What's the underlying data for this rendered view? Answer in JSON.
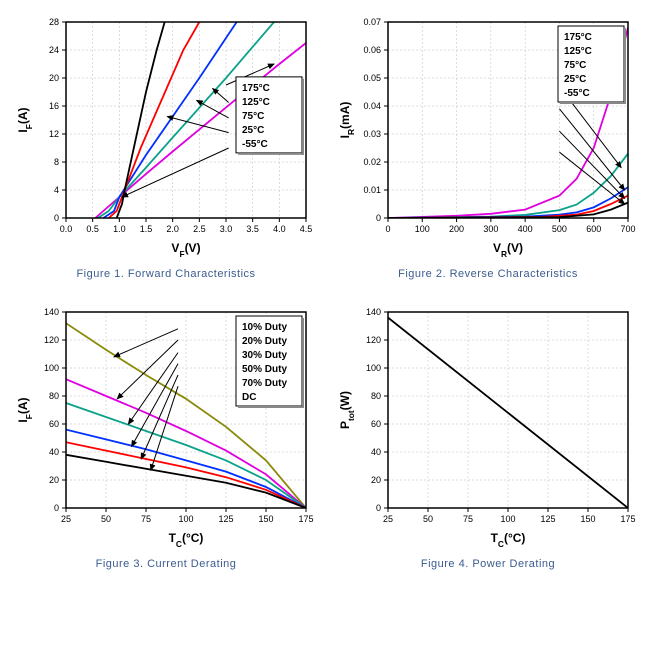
{
  "figures": [
    {
      "caption": "Figure 1. Forward Characteristics",
      "xlabel": "V_F(V)",
      "ylabel": "I_F(A)",
      "xlim": [
        0,
        4.5
      ],
      "xtick_step": 0.5,
      "ylim": [
        0,
        28
      ],
      "ytick_step": 4,
      "background_color": "#ffffff",
      "grid_color": "#bbbbbb",
      "legend_items": [
        "175°C",
        "125°C",
        "75°C",
        "25°C",
        "-55°C"
      ],
      "legend_pos": "right-mid",
      "series": [
        {
          "name": "175°C",
          "color": "#e000e0",
          "points": [
            [
              0.55,
              0
            ],
            [
              0.7,
              1
            ],
            [
              1.0,
              3
            ],
            [
              1.5,
              6.3
            ],
            [
              2.0,
              9.5
            ],
            [
              3.0,
              15.8
            ],
            [
              4.0,
              22
            ],
            [
              4.5,
              25
            ]
          ]
        },
        {
          "name": "125°C",
          "color": "#0aa28a",
          "points": [
            [
              0.6,
              0
            ],
            [
              0.8,
              1
            ],
            [
              1.0,
              3
            ],
            [
              1.5,
              7.2
            ],
            [
              2.0,
              11.5
            ],
            [
              3.0,
              20
            ],
            [
              3.9,
              28
            ]
          ]
        },
        {
          "name": "75°C",
          "color": "#0030ff",
          "points": [
            [
              0.7,
              0
            ],
            [
              0.9,
              1
            ],
            [
              1.0,
              3
            ],
            [
              1.5,
              9
            ],
            [
              2.0,
              14.5
            ],
            [
              2.5,
              20
            ],
            [
              3.2,
              28
            ]
          ]
        },
        {
          "name": "25°C",
          "color": "#ff0000",
          "points": [
            [
              0.8,
              0
            ],
            [
              0.95,
              1
            ],
            [
              1.05,
              3
            ],
            [
              1.4,
              10
            ],
            [
              1.8,
              17
            ],
            [
              2.2,
              24
            ],
            [
              2.5,
              28
            ]
          ]
        },
        {
          "name": "-55°C",
          "color": "#000000",
          "points": [
            [
              0.95,
              0
            ],
            [
              1.05,
              2
            ],
            [
              1.1,
              4
            ],
            [
              1.3,
              11
            ],
            [
              1.5,
              18
            ],
            [
              1.7,
              24
            ],
            [
              1.85,
              28
            ]
          ]
        }
      ],
      "arrows": [
        {
          "from": [
            3.0,
            19
          ],
          "to": [
            3.9,
            22
          ]
        },
        {
          "from": [
            3.05,
            16.5
          ],
          "to": [
            2.75,
            18.5
          ]
        },
        {
          "from": [
            3.05,
            14.3
          ],
          "to": [
            2.45,
            16.8
          ]
        },
        {
          "from": [
            3.05,
            12.2
          ],
          "to": [
            1.9,
            14.5
          ]
        },
        {
          "from": [
            3.05,
            10
          ],
          "to": [
            1.05,
            3
          ]
        }
      ]
    },
    {
      "caption": "Figure 2. Reverse Characteristics",
      "xlabel": "V_R(V)",
      "ylabel": "I_R(mA)",
      "xlim": [
        0,
        700
      ],
      "xtick_step": 100,
      "ylim": [
        0,
        0.07
      ],
      "ytick_step": 0.01,
      "background_color": "#ffffff",
      "grid_color": "#bbbbbb",
      "legend_items": [
        "175°C",
        "125°C",
        "75°C",
        "25°C",
        "-55°C"
      ],
      "legend_pos": "right-upper",
      "series": [
        {
          "name": "175°C",
          "color": "#e000e0",
          "points": [
            [
              0,
              0
            ],
            [
              200,
              0.0008
            ],
            [
              300,
              0.0015
            ],
            [
              400,
              0.003
            ],
            [
              500,
              0.008
            ],
            [
              550,
              0.014
            ],
            [
              600,
              0.025
            ],
            [
              650,
              0.044
            ],
            [
              700,
              0.068
            ]
          ]
        },
        {
          "name": "125°C",
          "color": "#0aa28a",
          "points": [
            [
              0,
              0
            ],
            [
              300,
              0.0005
            ],
            [
              400,
              0.0011
            ],
            [
              500,
              0.0028
            ],
            [
              550,
              0.0048
            ],
            [
              600,
              0.009
            ],
            [
              650,
              0.015
            ],
            [
              700,
              0.023
            ]
          ]
        },
        {
          "name": "75°C",
          "color": "#0030ff",
          "points": [
            [
              0,
              0
            ],
            [
              400,
              0.0005
            ],
            [
              500,
              0.0012
            ],
            [
              550,
              0.002
            ],
            [
              600,
              0.0038
            ],
            [
              650,
              0.007
            ],
            [
              700,
              0.011
            ]
          ]
        },
        {
          "name": "25°C",
          "color": "#ff0000",
          "points": [
            [
              0,
              0
            ],
            [
              450,
              0.0004
            ],
            [
              550,
              0.0012
            ],
            [
              600,
              0.0025
            ],
            [
              650,
              0.005
            ],
            [
              700,
              0.008
            ]
          ]
        },
        {
          "name": "-55°C",
          "color": "#000000",
          "points": [
            [
              0,
              0
            ],
            [
              500,
              0.0003
            ],
            [
              600,
              0.0013
            ],
            [
              650,
              0.003
            ],
            [
              700,
              0.0055
            ]
          ]
        }
      ],
      "arrows": [
        {
          "from": [
            500,
            0.0545
          ],
          "to": [
            655,
            0.046
          ]
        },
        {
          "from": [
            500,
            0.047
          ],
          "to": [
            680,
            0.018
          ]
        },
        {
          "from": [
            500,
            0.039
          ],
          "to": [
            690,
            0.01
          ]
        },
        {
          "from": [
            500,
            0.031
          ],
          "to": [
            690,
            0.007
          ]
        },
        {
          "from": [
            500,
            0.0235
          ],
          "to": [
            690,
            0.005
          ]
        }
      ]
    },
    {
      "caption": "Figure 3. Current Derating",
      "xlabel": "T_C(°C)",
      "ylabel": "I_F(A)",
      "xlim": [
        25,
        175
      ],
      "xtick_step": 25,
      "ylim": [
        0,
        140
      ],
      "ytick_step": 20,
      "background_color": "#ffffff",
      "grid_color": "#bbbbbb",
      "legend_items": [
        "10% Duty",
        "20% Duty",
        "30% Duty",
        "50% Duty",
        "70% Duty",
        "DC"
      ],
      "legend_pos": "right-upper",
      "series": [
        {
          "name": "10% Duty",
          "color": "#8a8a0a",
          "points": [
            [
              25,
              132
            ],
            [
              50,
              113
            ],
            [
              75,
              95
            ],
            [
              100,
              78
            ],
            [
              125,
              58
            ],
            [
              150,
              34
            ],
            [
              175,
              0
            ]
          ]
        },
        {
          "name": "20% Duty",
          "color": "#e000e0",
          "points": [
            [
              25,
              92
            ],
            [
              50,
              80
            ],
            [
              75,
              68
            ],
            [
              100,
              55
            ],
            [
              125,
              41
            ],
            [
              150,
              24
            ],
            [
              175,
              0
            ]
          ]
        },
        {
          "name": "30% Duty",
          "color": "#0aa28a",
          "points": [
            [
              25,
              75
            ],
            [
              50,
              65
            ],
            [
              75,
              55
            ],
            [
              100,
              45
            ],
            [
              125,
              34
            ],
            [
              150,
              20
            ],
            [
              175,
              0
            ]
          ]
        },
        {
          "name": "50% Duty",
          "color": "#0030ff",
          "points": [
            [
              25,
              56
            ],
            [
              50,
              49
            ],
            [
              75,
              42
            ],
            [
              100,
              34
            ],
            [
              125,
              26
            ],
            [
              150,
              15
            ],
            [
              175,
              0
            ]
          ]
        },
        {
          "name": "70% Duty",
          "color": "#ff0000",
          "points": [
            [
              25,
              47
            ],
            [
              50,
              41
            ],
            [
              75,
              35
            ],
            [
              100,
              29
            ],
            [
              125,
              22
            ],
            [
              150,
              13
            ],
            [
              175,
              0
            ]
          ]
        },
        {
          "name": "DC",
          "color": "#000000",
          "points": [
            [
              25,
              38
            ],
            [
              50,
              33
            ],
            [
              75,
              28
            ],
            [
              100,
              23
            ],
            [
              125,
              18
            ],
            [
              150,
              11
            ],
            [
              175,
              0
            ]
          ]
        }
      ],
      "arrows": [
        {
          "from": [
            95,
            128
          ],
          "to": [
            55,
            108
          ]
        },
        {
          "from": [
            95,
            120
          ],
          "to": [
            57,
            78
          ]
        },
        {
          "from": [
            95,
            111
          ],
          "to": [
            64,
            60
          ]
        },
        {
          "from": [
            95,
            103
          ],
          "to": [
            66,
            44
          ]
        },
        {
          "from": [
            95,
            95
          ],
          "to": [
            72,
            35
          ]
        },
        {
          "from": [
            95,
            87
          ],
          "to": [
            78,
            27
          ]
        }
      ]
    },
    {
      "caption": "Figure 4. Power Derating",
      "xlabel": "T_C(°C)",
      "ylabel": "P_tot(W)",
      "xlim": [
        25,
        175
      ],
      "xtick_step": 25,
      "ylim": [
        0,
        140
      ],
      "ytick_step": 20,
      "background_color": "#ffffff",
      "grid_color": "#bbbbbb",
      "legend_items": [],
      "series": [
        {
          "name": "P",
          "color": "#000000",
          "points": [
            [
              25,
              136
            ],
            [
              175,
              0
            ]
          ]
        }
      ],
      "arrows": []
    }
  ]
}
